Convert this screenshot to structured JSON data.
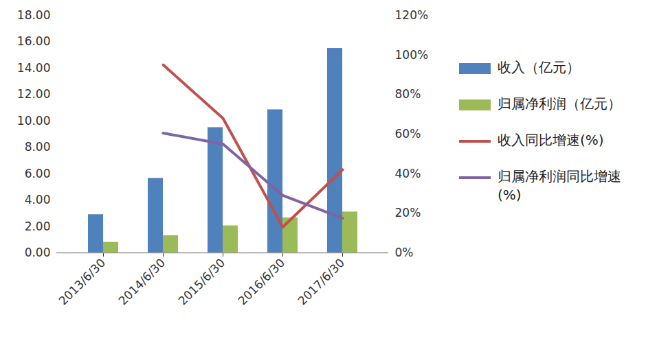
{
  "chart_data": {
    "type": "bar",
    "categories": [
      "2013/6/30",
      "2014/6/30",
      "2015/6/30",
      "2016/6/30",
      "2017/6/30"
    ],
    "series": [
      {
        "name": "收入（亿元）",
        "type": "bar",
        "color": "#4f81bd",
        "values": [
          2.9,
          5.65,
          9.5,
          10.85,
          15.5
        ]
      },
      {
        "name": "归属净利润（亿元）",
        "type": "bar",
        "color": "#9bbb59",
        "values": [
          0.8,
          1.3,
          2.05,
          2.65,
          3.1
        ]
      },
      {
        "name": "收入同比增速(%)",
        "type": "line",
        "axis": "y2",
        "color": "#c0504d",
        "values": [
          null,
          95,
          68,
          13,
          42
        ]
      },
      {
        "name": "归属净利润同比增速(%)",
        "type": "line",
        "axis": "y2",
        "color": "#8064a2",
        "values": [
          null,
          60.5,
          55,
          29,
          17.5
        ]
      }
    ],
    "ylim": [
      0,
      18
    ],
    "yticks": [
      {
        "value": 0,
        "label": "0.00"
      },
      {
        "value": 2,
        "label": "2.00"
      },
      {
        "value": 4,
        "label": "4.00"
      },
      {
        "value": 6,
        "label": "6.00"
      },
      {
        "value": 8,
        "label": "8.00"
      },
      {
        "value": 10,
        "label": "10.00"
      },
      {
        "value": 12,
        "label": "12.00"
      },
      {
        "value": 14,
        "label": "14.00"
      },
      {
        "value": 16,
        "label": "16.00"
      },
      {
        "value": 18,
        "label": "18.00"
      }
    ],
    "y2lim": [
      0,
      120
    ],
    "y2ticks": [
      {
        "value": 0,
        "label": "0%"
      },
      {
        "value": 20,
        "label": "20%"
      },
      {
        "value": 40,
        "label": "40%"
      },
      {
        "value": 60,
        "label": "60%"
      },
      {
        "value": 80,
        "label": "80%"
      },
      {
        "value": 100,
        "label": "100%"
      },
      {
        "value": 120,
        "label": "120%"
      }
    ],
    "grid": false,
    "legend": "right"
  }
}
